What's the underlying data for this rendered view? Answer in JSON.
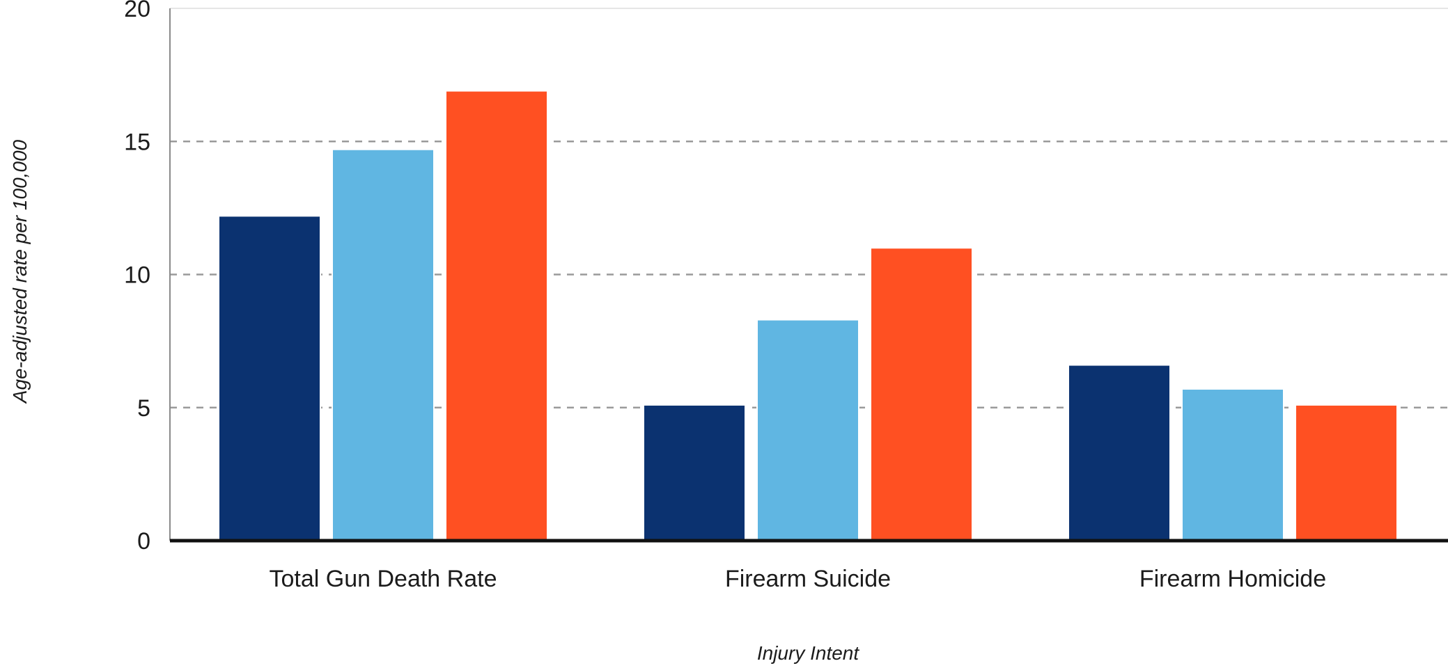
{
  "chart_data": {
    "type": "bar",
    "categories": [
      "Total Gun Death Rate",
      "Firearm Suicide",
      "Firearm Homicide"
    ],
    "series": [
      {
        "values": [
          12.2,
          5.1,
          6.6
        ],
        "color": "#0b3270"
      },
      {
        "values": [
          14.7,
          8.3,
          5.7
        ],
        "color": "#60b6e2"
      },
      {
        "values": [
          16.9,
          11.0,
          5.1
        ],
        "color": "#ff5022"
      }
    ],
    "xlabel": "Injury Intent",
    "ylabel": "Age-adjusted rate per 100,000",
    "ylim": [
      0,
      20
    ],
    "yticks": [
      0,
      5,
      10,
      15,
      20
    ],
    "grid": true,
    "grid_style": "dashed",
    "legend": "none"
  }
}
